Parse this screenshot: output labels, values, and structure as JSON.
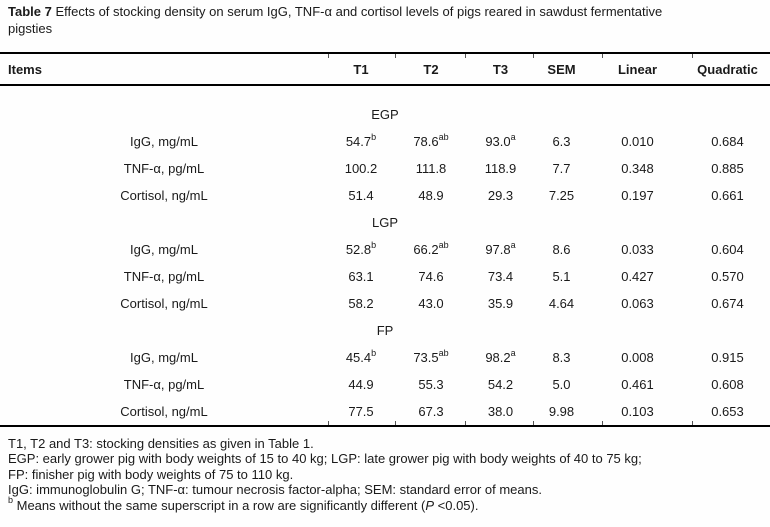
{
  "caption": {
    "label": "Table 7",
    "text": " Effects of stocking density on serum IgG, TNF-α and cortisol levels of pigs reared in sawdust fermentative pigsties"
  },
  "table": {
    "columns": [
      "Items",
      "T1",
      "T2",
      "T3",
      "SEM",
      "Linear",
      "Quadratic"
    ],
    "sections": [
      {
        "name": "EGP",
        "rows": [
          {
            "item": "IgG, mg/mL",
            "values": [
              "54.7^b",
              "78.6^ab",
              "93.0^a",
              "6.3",
              "0.010",
              "0.684"
            ]
          },
          {
            "item": "TNF-α, pg/mL",
            "values": [
              "100.2",
              "111.8",
              "118.9",
              "7.7",
              "0.348",
              "0.885"
            ]
          },
          {
            "item": "Cortisol, ng/mL",
            "values": [
              "51.4",
              "48.9",
              "29.3",
              "7.25",
              "0.197",
              "0.661"
            ]
          }
        ]
      },
      {
        "name": "LGP",
        "rows": [
          {
            "item": "IgG, mg/mL",
            "values": [
              "52.8^b",
              "66.2^ab",
              "97.8^a",
              "8.6",
              "0.033",
              "0.604"
            ]
          },
          {
            "item": "TNF-α, pg/mL",
            "values": [
              "63.1",
              "74.6",
              "73.4",
              "5.1",
              "0.427",
              "0.570"
            ]
          },
          {
            "item": "Cortisol, ng/mL",
            "values": [
              "58.2",
              "43.0",
              "35.9",
              "4.64",
              "0.063",
              "0.674"
            ]
          }
        ]
      },
      {
        "name": "FP",
        "rows": [
          {
            "item": "IgG, mg/mL",
            "values": [
              "45.4^b",
              "73.5^ab",
              "98.2^a",
              "8.3",
              "0.008",
              "0.915"
            ]
          },
          {
            "item": "TNF-α, pg/mL",
            "values": [
              "44.9",
              "55.3",
              "54.2",
              "5.0",
              "0.461",
              "0.608"
            ]
          },
          {
            "item": "Cortisol, ng/mL",
            "values": [
              "77.5",
              "67.3",
              "38.0",
              "9.98",
              "0.103",
              "0.653"
            ]
          }
        ]
      }
    ]
  },
  "footnotes": [
    [
      {
        "t": "T1, T2 and T3: stocking densities as given in Table 1."
      }
    ],
    [
      {
        "t": "EGP: early grower pig with body weights of 15 to 40 kg; LGP: late grower pig with body weights of 40 to 75 kg;"
      }
    ],
    [
      {
        "t": "FP: finisher pig with body weights of 75 to 110 kg."
      }
    ],
    [
      {
        "t": "IgG: immunoglobulin G; TNF-α: tumour necrosis factor-alpha; SEM: standard error of means."
      }
    ],
    [
      {
        "t": "b",
        "s": "sup"
      },
      {
        "t": " Means without the same superscript in a row are significantly different ("
      },
      {
        "t": "P",
        "s": "i"
      },
      {
        "t": " <0.05)."
      }
    ]
  ]
}
